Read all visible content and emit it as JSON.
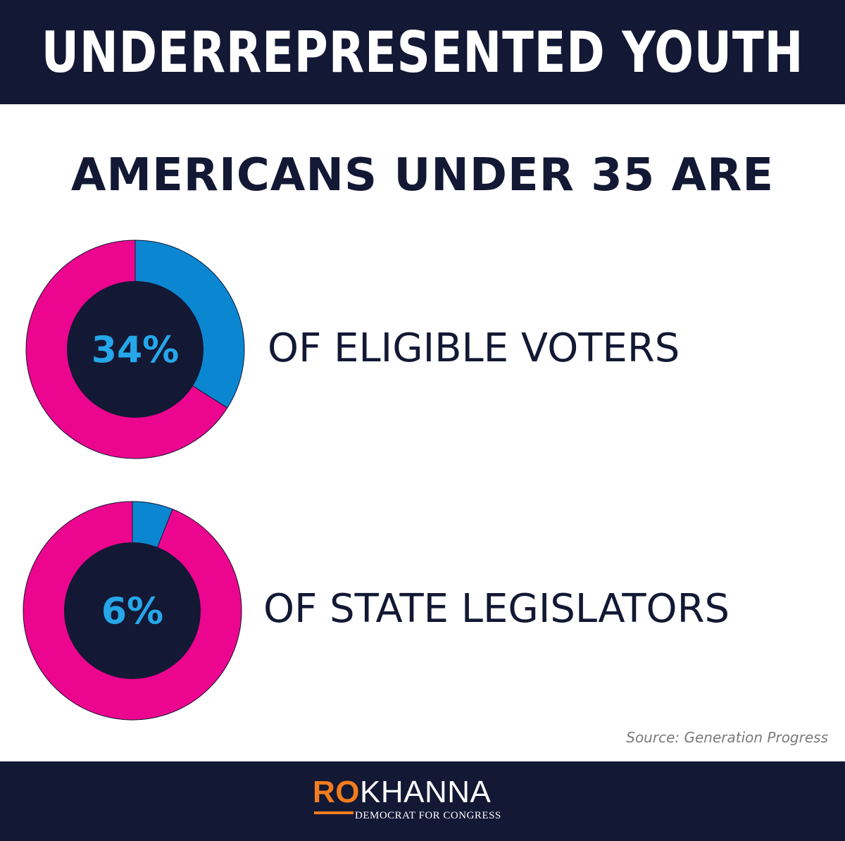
{
  "header": {
    "title": "UNDERREPRESENTED YOUTH"
  },
  "subtitle": "AMERICANS UNDER 35 ARE",
  "colors": {
    "background_bar": "#131834",
    "donut_highlight": "#0b86d1",
    "donut_rest": "#ec058e",
    "donut_center": "#131834",
    "percent_text": "#25a7e9",
    "logo_accent": "#f07d1e"
  },
  "chart_data": [
    {
      "type": "pie",
      "values": [
        34,
        66
      ],
      "center_label": "34%",
      "label": "OF ELIGIBLE VOTERS"
    },
    {
      "type": "pie",
      "values": [
        6,
        94
      ],
      "center_label": "6%",
      "label": "OF STATE LEGISLATORS"
    }
  ],
  "source": "Source: Generation Progress",
  "footer": {
    "logo_ro": "RO",
    "logo_khanna": "KHANNA",
    "logo_tagline": "DEMOCRAT FOR CONGRESS"
  }
}
